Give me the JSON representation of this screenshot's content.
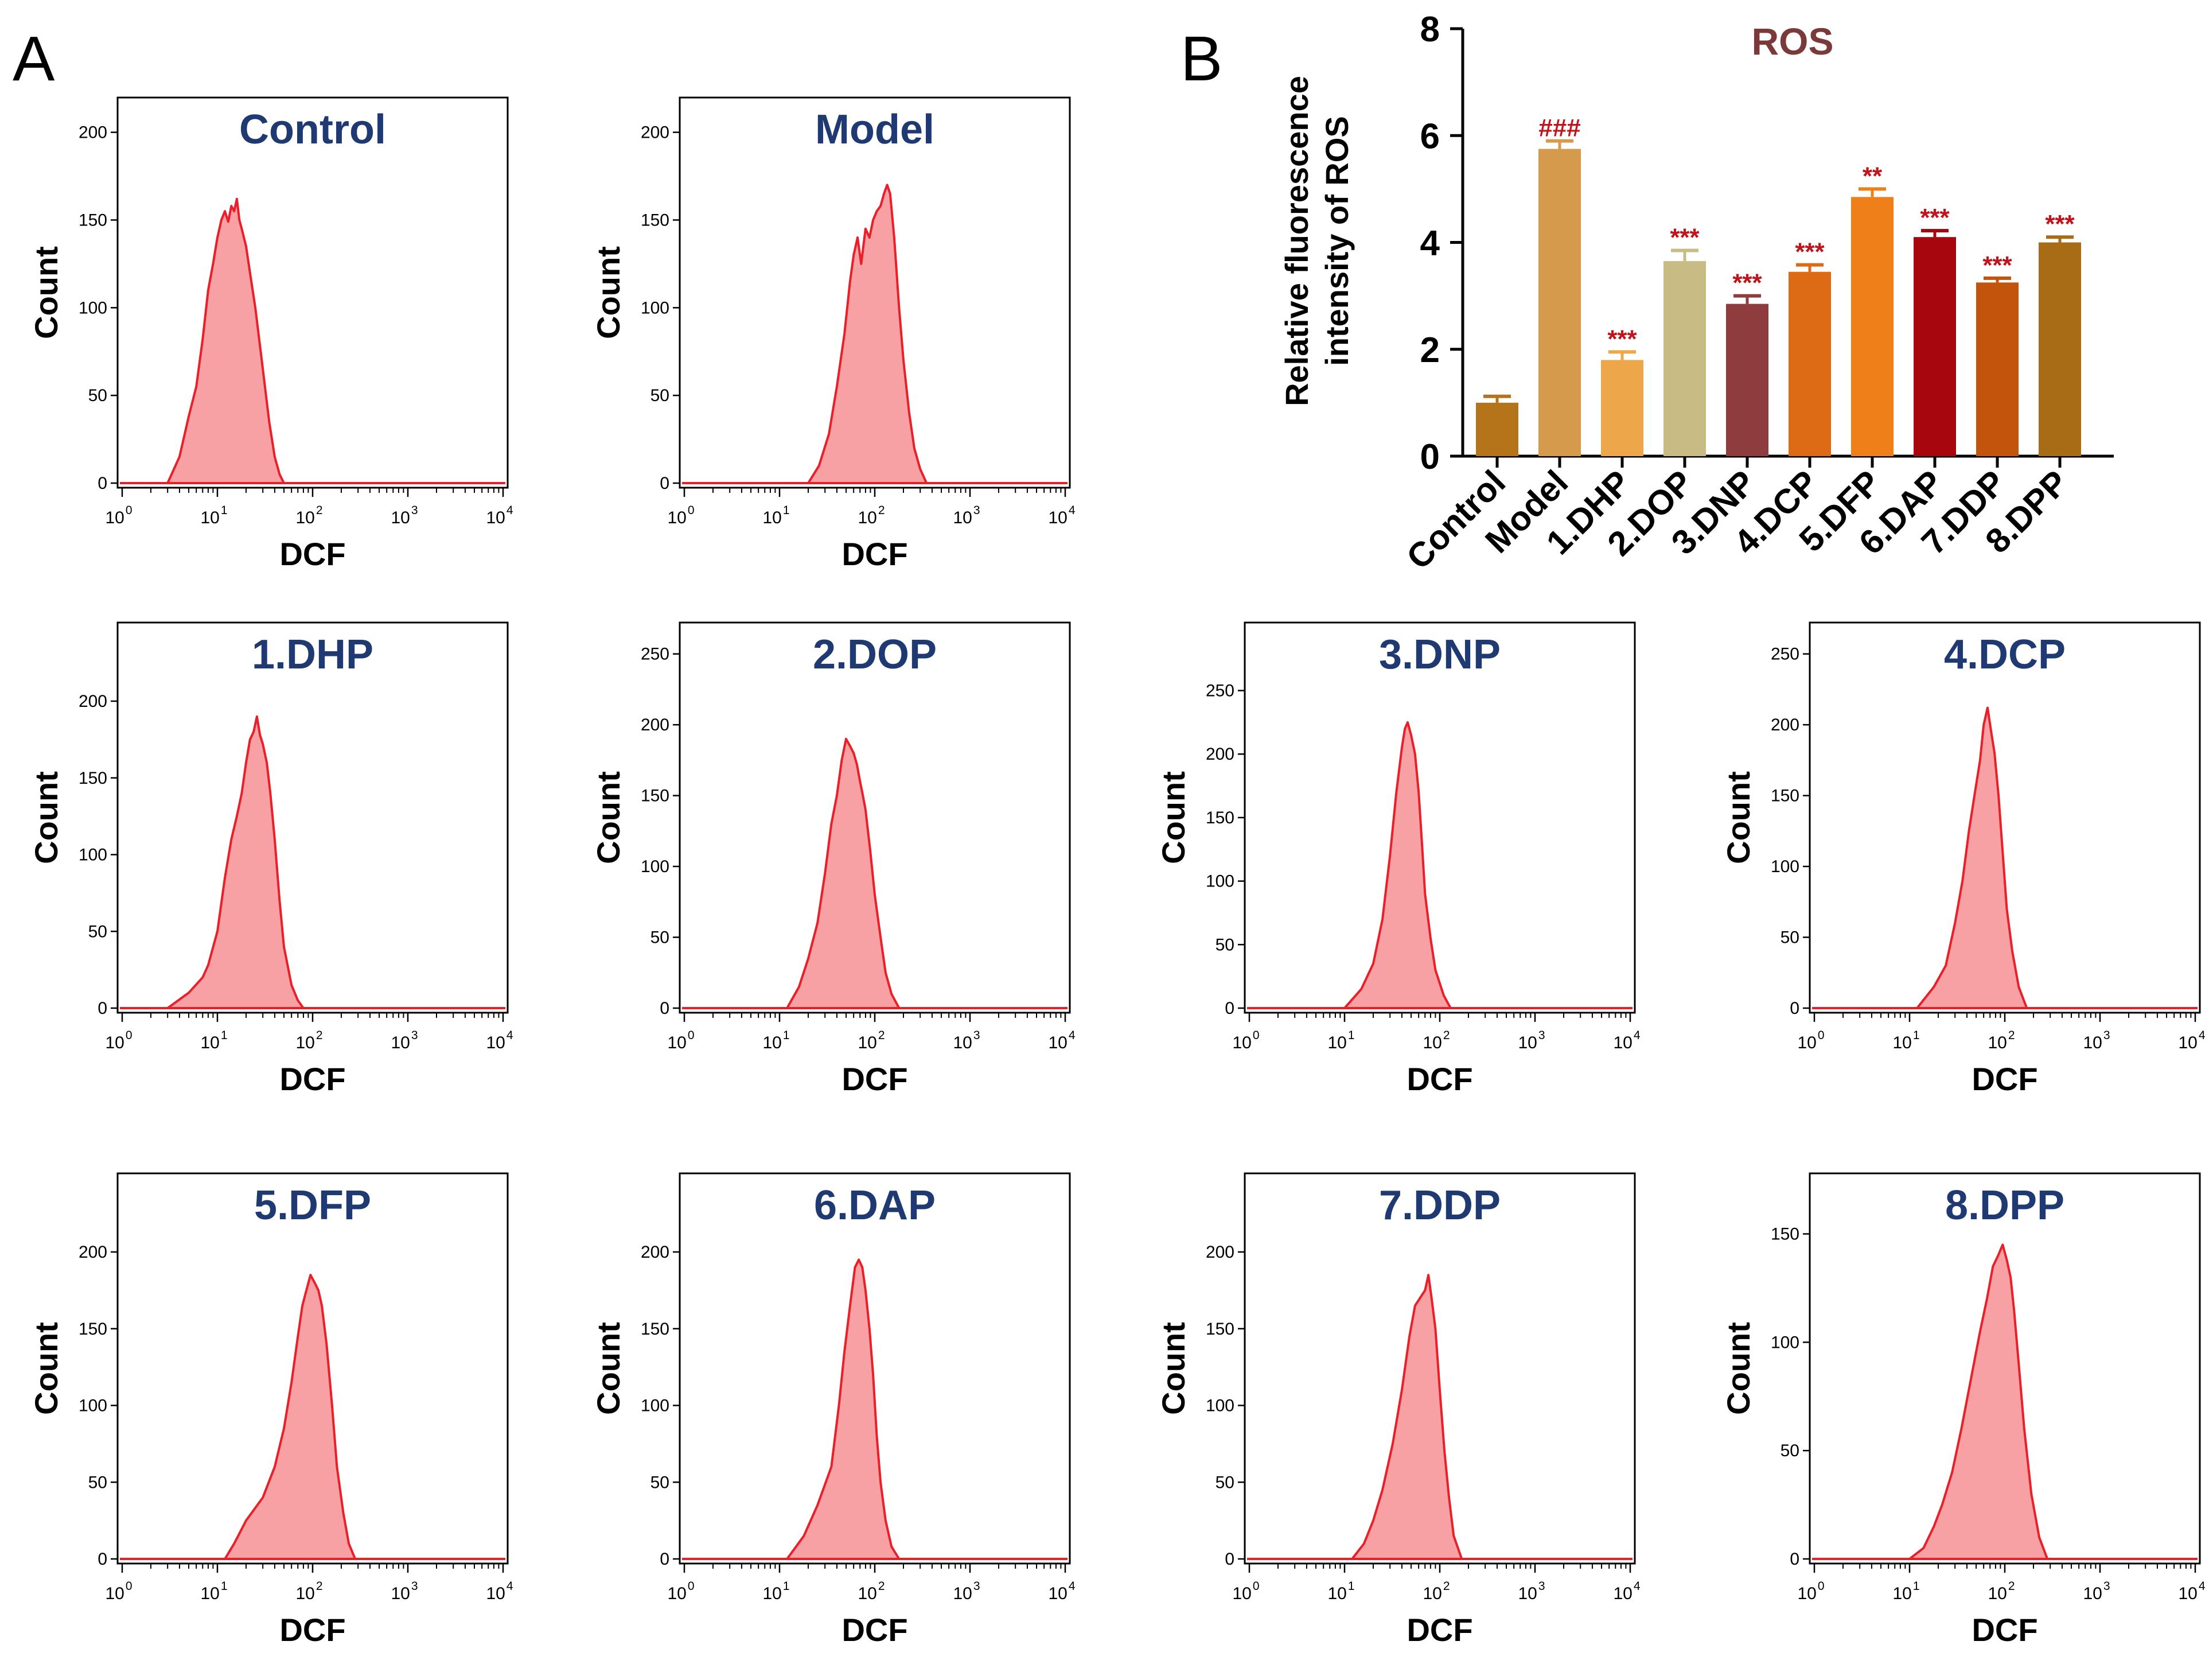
{
  "panel_labels": {
    "a": "A",
    "b": "B"
  },
  "colors": {
    "hist_line": "#e8202a",
    "hist_fill": "#f7a1a4",
    "title": "#1f3a73",
    "annotation": "#c0141c",
    "bar_title": "#7b3a3a"
  },
  "chart_data": [
    {
      "type": "histogram",
      "title": "Control",
      "xlabel": "DCF",
      "ylabel": "Count",
      "xscale": "log",
      "xlim": [
        1,
        10000
      ],
      "ylim": [
        0,
        210
      ],
      "x_ticks": [
        1,
        10,
        100,
        1000,
        10000
      ],
      "y_ticks": [
        0,
        50,
        100,
        150,
        200
      ],
      "points": [
        [
          3,
          0
        ],
        [
          4,
          15
        ],
        [
          5,
          38
        ],
        [
          6,
          55
        ],
        [
          7,
          82
        ],
        [
          8,
          110
        ],
        [
          9,
          125
        ],
        [
          10,
          140
        ],
        [
          11,
          150
        ],
        [
          12,
          155
        ],
        [
          13,
          149
        ],
        [
          14,
          158
        ],
        [
          15,
          155
        ],
        [
          16,
          162
        ],
        [
          17,
          150
        ],
        [
          18,
          145
        ],
        [
          20,
          135
        ],
        [
          22,
          120
        ],
        [
          25,
          100
        ],
        [
          30,
          65
        ],
        [
          35,
          35
        ],
        [
          40,
          15
        ],
        [
          45,
          5
        ],
        [
          50,
          0
        ]
      ]
    },
    {
      "type": "histogram",
      "title": "Model",
      "xlabel": "DCF",
      "ylabel": "Count",
      "xscale": "log",
      "xlim": [
        1,
        10000
      ],
      "ylim": [
        0,
        210
      ],
      "x_ticks": [
        1,
        10,
        100,
        1000,
        10000
      ],
      "y_ticks": [
        0,
        50,
        100,
        150,
        200
      ],
      "points": [
        [
          20,
          0
        ],
        [
          26,
          10
        ],
        [
          33,
          28
        ],
        [
          40,
          55
        ],
        [
          48,
          85
        ],
        [
          55,
          115
        ],
        [
          60,
          130
        ],
        [
          66,
          140
        ],
        [
          72,
          125
        ],
        [
          80,
          145
        ],
        [
          88,
          140
        ],
        [
          96,
          150
        ],
        [
          105,
          155
        ],
        [
          115,
          158
        ],
        [
          125,
          165
        ],
        [
          135,
          170
        ],
        [
          145,
          165
        ],
        [
          160,
          140
        ],
        [
          180,
          100
        ],
        [
          200,
          70
        ],
        [
          230,
          40
        ],
        [
          260,
          20
        ],
        [
          300,
          8
        ],
        [
          350,
          0
        ]
      ]
    },
    {
      "type": "histogram",
      "title": "1.DHP",
      "xlabel": "DCF",
      "ylabel": "Count",
      "xscale": "log",
      "xlim": [
        1,
        10000
      ],
      "ylim": [
        0,
        240
      ],
      "x_ticks": [
        1,
        10,
        100,
        1000,
        10000
      ],
      "y_ticks": [
        0,
        50,
        100,
        150,
        200
      ],
      "points": [
        [
          3,
          0
        ],
        [
          5,
          10
        ],
        [
          7,
          20
        ],
        [
          8,
          28
        ],
        [
          10,
          50
        ],
        [
          12,
          85
        ],
        [
          14,
          110
        ],
        [
          16,
          125
        ],
        [
          18,
          140
        ],
        [
          20,
          160
        ],
        [
          22,
          175
        ],
        [
          24,
          180
        ],
        [
          26,
          190
        ],
        [
          28,
          178
        ],
        [
          30,
          172
        ],
        [
          33,
          160
        ],
        [
          36,
          140
        ],
        [
          40,
          110
        ],
        [
          45,
          70
        ],
        [
          50,
          40
        ],
        [
          60,
          15
        ],
        [
          70,
          5
        ],
        [
          80,
          0
        ]
      ]
    },
    {
      "type": "histogram",
      "title": "2.DOP",
      "xlabel": "DCF",
      "ylabel": "Count",
      "xscale": "log",
      "xlim": [
        1,
        10000
      ],
      "ylim": [
        0,
        260
      ],
      "x_ticks": [
        1,
        10,
        100,
        1000,
        10000
      ],
      "y_ticks": [
        0,
        50,
        100,
        150,
        200,
        250
      ],
      "points": [
        [
          12,
          0
        ],
        [
          16,
          15
        ],
        [
          20,
          35
        ],
        [
          25,
          60
        ],
        [
          30,
          95
        ],
        [
          35,
          130
        ],
        [
          40,
          150
        ],
        [
          45,
          175
        ],
        [
          50,
          190
        ],
        [
          55,
          185
        ],
        [
          60,
          180
        ],
        [
          65,
          172
        ],
        [
          70,
          160
        ],
        [
          75,
          150
        ],
        [
          80,
          140
        ],
        [
          90,
          110
        ],
        [
          100,
          80
        ],
        [
          115,
          50
        ],
        [
          130,
          25
        ],
        [
          150,
          10
        ],
        [
          180,
          0
        ]
      ]
    },
    {
      "type": "histogram",
      "title": "3.DNP",
      "xlabel": "DCF",
      "ylabel": "Count",
      "xscale": "log",
      "xlim": [
        1,
        10000
      ],
      "ylim": [
        0,
        290
      ],
      "x_ticks": [
        1,
        10,
        100,
        1000,
        10000
      ],
      "y_ticks": [
        0,
        50,
        100,
        150,
        200,
        250
      ],
      "points": [
        [
          10,
          0
        ],
        [
          15,
          15
        ],
        [
          20,
          35
        ],
        [
          25,
          70
        ],
        [
          30,
          120
        ],
        [
          35,
          170
        ],
        [
          40,
          205
        ],
        [
          43,
          220
        ],
        [
          46,
          225
        ],
        [
          50,
          215
        ],
        [
          55,
          200
        ],
        [
          60,
          170
        ],
        [
          65,
          130
        ],
        [
          70,
          90
        ],
        [
          80,
          55
        ],
        [
          90,
          30
        ],
        [
          110,
          10
        ],
        [
          130,
          0
        ]
      ]
    },
    {
      "type": "histogram",
      "title": "4.DCP",
      "xlabel": "DCF",
      "ylabel": "Count",
      "xscale": "log",
      "xlim": [
        1,
        10000
      ],
      "ylim": [
        0,
        260
      ],
      "x_ticks": [
        1,
        10,
        100,
        1000,
        10000
      ],
      "y_ticks": [
        0,
        50,
        100,
        150,
        200,
        250
      ],
      "points": [
        [
          12,
          0
        ],
        [
          18,
          15
        ],
        [
          24,
          30
        ],
        [
          30,
          60
        ],
        [
          36,
          90
        ],
        [
          42,
          125
        ],
        [
          48,
          150
        ],
        [
          55,
          175
        ],
        [
          60,
          200
        ],
        [
          66,
          212
        ],
        [
          72,
          195
        ],
        [
          78,
          180
        ],
        [
          86,
          150
        ],
        [
          95,
          110
        ],
        [
          105,
          70
        ],
        [
          120,
          40
        ],
        [
          140,
          15
        ],
        [
          170,
          0
        ]
      ]
    },
    {
      "type": "histogram",
      "title": "5.DFP",
      "xlabel": "DCF",
      "ylabel": "Count",
      "xscale": "log",
      "xlim": [
        1,
        10000
      ],
      "ylim": [
        0,
        240
      ],
      "x_ticks": [
        1,
        10,
        100,
        1000,
        10000
      ],
      "y_ticks": [
        0,
        50,
        100,
        150,
        200
      ],
      "points": [
        [
          12,
          0
        ],
        [
          15,
          10
        ],
        [
          20,
          25
        ],
        [
          30,
          40
        ],
        [
          40,
          60
        ],
        [
          50,
          85
        ],
        [
          60,
          115
        ],
        [
          70,
          145
        ],
        [
          78,
          165
        ],
        [
          86,
          175
        ],
        [
          95,
          185
        ],
        [
          105,
          180
        ],
        [
          115,
          175
        ],
        [
          125,
          165
        ],
        [
          140,
          140
        ],
        [
          160,
          100
        ],
        [
          180,
          60
        ],
        [
          210,
          30
        ],
        [
          240,
          10
        ],
        [
          280,
          0
        ]
      ]
    },
    {
      "type": "histogram",
      "title": "6.DAP",
      "xlabel": "DCF",
      "ylabel": "Count",
      "xscale": "log",
      "xlim": [
        1,
        10000
      ],
      "ylim": [
        0,
        240
      ],
      "x_ticks": [
        1,
        10,
        100,
        1000,
        10000
      ],
      "y_ticks": [
        0,
        50,
        100,
        150,
        200
      ],
      "points": [
        [
          12,
          0
        ],
        [
          18,
          15
        ],
        [
          25,
          35
        ],
        [
          35,
          60
        ],
        [
          42,
          100
        ],
        [
          48,
          135
        ],
        [
          55,
          165
        ],
        [
          62,
          190
        ],
        [
          68,
          195
        ],
        [
          74,
          190
        ],
        [
          80,
          175
        ],
        [
          88,
          150
        ],
        [
          96,
          120
        ],
        [
          105,
          80
        ],
        [
          115,
          50
        ],
        [
          130,
          25
        ],
        [
          150,
          8
        ],
        [
          180,
          0
        ]
      ]
    },
    {
      "type": "histogram",
      "title": "7.DDP",
      "xlabel": "DCF",
      "ylabel": "Count",
      "xscale": "log",
      "xlim": [
        1,
        10000
      ],
      "ylim": [
        0,
        240
      ],
      "x_ticks": [
        1,
        10,
        100,
        1000,
        10000
      ],
      "y_ticks": [
        0,
        50,
        100,
        150,
        200
      ],
      "points": [
        [
          12,
          0
        ],
        [
          16,
          10
        ],
        [
          20,
          25
        ],
        [
          25,
          45
        ],
        [
          32,
          75
        ],
        [
          40,
          110
        ],
        [
          48,
          145
        ],
        [
          55,
          165
        ],
        [
          62,
          170
        ],
        [
          70,
          175
        ],
        [
          76,
          185
        ],
        [
          82,
          170
        ],
        [
          90,
          150
        ],
        [
          100,
          110
        ],
        [
          112,
          70
        ],
        [
          125,
          40
        ],
        [
          140,
          15
        ],
        [
          170,
          0
        ]
      ]
    },
    {
      "type": "histogram",
      "title": "8.DPP",
      "xlabel": "DCF",
      "ylabel": "Count",
      "xscale": "log",
      "xlim": [
        1,
        10000
      ],
      "ylim": [
        0,
        170
      ],
      "x_ticks": [
        1,
        10,
        100,
        1000,
        10000
      ],
      "y_ticks": [
        0,
        50,
        100,
        150
      ],
      "points": [
        [
          10,
          0
        ],
        [
          14,
          5
        ],
        [
          18,
          15
        ],
        [
          22,
          25
        ],
        [
          28,
          40
        ],
        [
          35,
          60
        ],
        [
          45,
          85
        ],
        [
          55,
          105
        ],
        [
          65,
          120
        ],
        [
          75,
          135
        ],
        [
          85,
          140
        ],
        [
          95,
          145
        ],
        [
          105,
          138
        ],
        [
          115,
          130
        ],
        [
          125,
          115
        ],
        [
          140,
          90
        ],
        [
          160,
          60
        ],
        [
          190,
          30
        ],
        [
          230,
          10
        ],
        [
          280,
          0
        ]
      ]
    },
    {
      "type": "bar",
      "title": "ROS",
      "ylabel_lines": [
        "Relative fluorescence",
        "intensity of ROS"
      ],
      "ylim": [
        0,
        8
      ],
      "y_ticks": [
        0,
        2,
        4,
        6,
        8
      ],
      "categories": [
        "Control",
        "Model",
        "1.DHP",
        "2.DOP",
        "3.DNP",
        "4.DCP",
        "5.DFP",
        "6.DAP",
        "7.DDP",
        "8.DPP"
      ],
      "values": [
        1.0,
        5.75,
        1.8,
        3.65,
        2.85,
        3.45,
        4.85,
        4.1,
        3.25,
        4.0
      ],
      "errors": [
        0.12,
        0.15,
        0.15,
        0.2,
        0.15,
        0.13,
        0.15,
        0.12,
        0.08,
        0.1
      ],
      "bar_colors": [
        "#b5741a",
        "#d69a4c",
        "#eda64a",
        "#c8bb83",
        "#8f3c3f",
        "#dd6a14",
        "#ef8019",
        "#a7060f",
        "#c2540b",
        "#a86b16"
      ],
      "annotations": [
        "",
        "###",
        "***",
        "***",
        "***",
        "***",
        "**",
        "***",
        "***",
        "***"
      ]
    }
  ]
}
